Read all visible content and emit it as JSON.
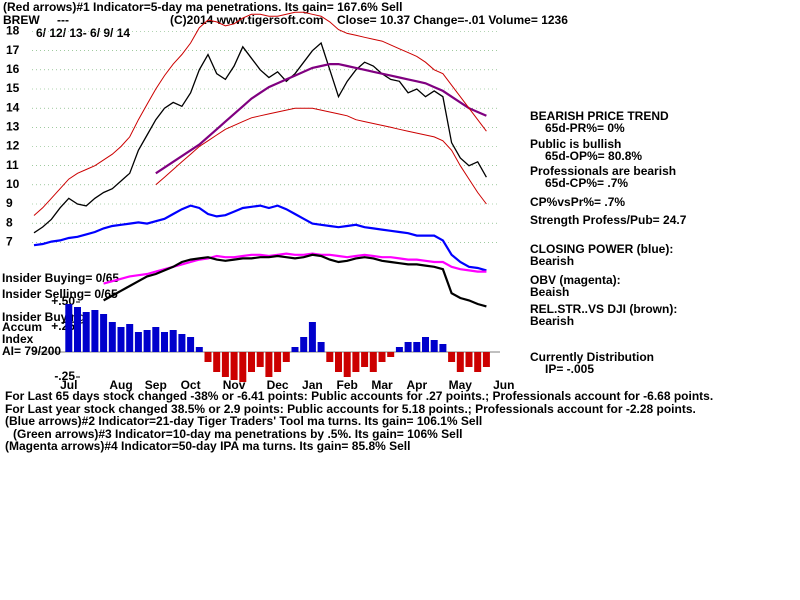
{
  "header": {
    "line1": "(Red arrows)#1 Indicator=5-day ma penetrations. Its gain= 167.6% Sell",
    "symbol": "BREW",
    "dashes": "---",
    "copyright": "(C)2014 www.tigersoft.com",
    "quote": "Close=  10.37  Change=-.01 Volume= 1236",
    "dates": "6/ 12/ 13- 6/ 9/ 14"
  },
  "notes": [
    "BEARISH PRICE TREND",
    "65d-PR%= 0%",
    "Public is bullish",
    "65d-OP%= 80.8%",
    "Professionals are bearish",
    "65d-CP%= .7%",
    "CP%vsPr%=  .7%",
    "Strength Profess/Pub= 24.7",
    "CLOSING POWER (blue):",
    "Bearish",
    "OBV (magenta):",
    "Beaish",
    "REL.STR..VS DJI (brown):",
    "Bearish",
    "Currently Distribution",
    "IP= -.005"
  ],
  "insider": [
    "Insider Buying= 0/65",
    "Insider Selling= 0/65",
    "Insider Buying",
    "Accum",
    "Index",
    "AI= 79/200"
  ],
  "footer": [
    "For Last 65 days stock changed -38% or -6.41 points:  Public accounts for  .27 points.;  Professionals account for -6.68 points.",
    "For Last year stock changed  38.5% or  2.9 points:  Public accounts for  5.18 points.;  Professionals account for -2.28 points.",
    "(Blue arrows)#2 Indicator=21-day Tiger Traders' Tool ma turns. Its gain= 106.1% Sell",
    "(Green arrows)#3 Indicator=10-day ma penetrations by .5%. Its gain= 106% Sell",
    "(Magenta arrows)#4 Indicator=50-day IPA ma turns. Its gain= 85.8% Sell"
  ],
  "chart_data": [
    {
      "type": "line",
      "categories": [
        null,
        null,
        null,
        null,
        "Jul",
        null,
        null,
        null,
        null,
        null,
        "Aug",
        null,
        null,
        null,
        "Sep",
        null,
        null,
        null,
        "Oct",
        null,
        null,
        null,
        null,
        "Nov",
        null,
        null,
        null,
        null,
        "Dec",
        null,
        null,
        null,
        "Jan",
        null,
        null,
        null,
        "Feb",
        null,
        null,
        null,
        "Mar",
        null,
        null,
        null,
        "Apr",
        null,
        null,
        null,
        null,
        "May",
        null,
        null,
        null,
        null,
        "Jun"
      ],
      "ylim": [
        6.6,
        18.6
      ],
      "yticks": [
        7,
        8,
        9,
        10,
        11,
        12,
        13,
        14,
        15,
        16,
        17,
        18
      ],
      "grid": true,
      "y2lim": [
        0,
        100
      ],
      "series": [
        {
          "name": "Close",
          "color": "#000000",
          "values": [
            7.5,
            7.8,
            8.2,
            8.8,
            9.3,
            9.0,
            8.9,
            9.3,
            9.6,
            9.8,
            10.2,
            10.6,
            11.8,
            12.6,
            13.4,
            14.0,
            14.3,
            14.1,
            14.8,
            16.0,
            16.8,
            15.8,
            15.5,
            16.2,
            17.2,
            16.6,
            16.0,
            15.6,
            15.9,
            15.4,
            15.8,
            16.4,
            17.0,
            17.4,
            16.0,
            14.6,
            15.4,
            16.0,
            16.4,
            16.2,
            15.8,
            15.5,
            15.4,
            14.8,
            15.0,
            14.6,
            14.9,
            14.6,
            12.2,
            11.4,
            11.0,
            11.2,
            10.4,
            null,
            null
          ]
        },
        {
          "name": "MA",
          "color": "#800080",
          "values": [
            null,
            null,
            null,
            null,
            null,
            null,
            null,
            null,
            null,
            null,
            null,
            null,
            null,
            null,
            10.6,
            10.9,
            11.2,
            11.5,
            11.8,
            12.1,
            12.5,
            12.9,
            13.3,
            13.7,
            14.1,
            14.5,
            14.8,
            15.1,
            15.3,
            15.5,
            15.7,
            15.9,
            16.1,
            16.2,
            16.3,
            16.3,
            16.2,
            16.1,
            16.0,
            15.9,
            15.8,
            15.7,
            15.6,
            15.5,
            15.4,
            15.3,
            15.1,
            14.9,
            14.6,
            14.3,
            14.0,
            13.8,
            13.6,
            null,
            null
          ]
        },
        {
          "name": "Upper band",
          "color": "#cc0000",
          "values": [
            8.4,
            8.8,
            9.3,
            9.8,
            10.3,
            10.6,
            10.8,
            11.0,
            11.3,
            11.6,
            12.0,
            12.5,
            13.4,
            14.2,
            15.0,
            15.7,
            16.3,
            16.8,
            17.4,
            18.2,
            18.6,
            18.5,
            18.3,
            18.4,
            18.7,
            18.9,
            18.9,
            18.8,
            18.8,
            18.9,
            19.0,
            19.0,
            18.9,
            18.8,
            18.5,
            18.1,
            17.9,
            17.8,
            17.7,
            17.6,
            17.5,
            17.3,
            17.1,
            16.9,
            16.7,
            16.4,
            16.0,
            15.8,
            15.2,
            14.6,
            14.0,
            13.4,
            12.8,
            null,
            null
          ]
        },
        {
          "name": "Lower band",
          "color": "#cc0000",
          "values": [
            null,
            null,
            null,
            null,
            null,
            null,
            null,
            null,
            null,
            null,
            null,
            null,
            null,
            null,
            10.0,
            10.4,
            10.8,
            11.2,
            11.6,
            12.0,
            12.3,
            12.6,
            12.9,
            13.1,
            13.3,
            13.5,
            13.6,
            13.7,
            13.8,
            13.9,
            14.0,
            14.0,
            14.0,
            13.9,
            13.8,
            13.7,
            13.6,
            13.4,
            13.3,
            13.2,
            13.1,
            13.0,
            12.9,
            12.8,
            12.7,
            12.6,
            12.5,
            12.3,
            11.8,
            11.0,
            10.3,
            9.6,
            9.0,
            null,
            null
          ]
        },
        {
          "name": "Closing Power",
          "color": "#0000ff",
          "axis": "y2",
          "values": [
            54,
            55,
            57,
            58,
            60,
            61,
            63,
            65,
            68,
            70,
            71,
            72,
            73,
            72,
            74,
            76,
            80,
            84,
            87,
            85,
            80,
            78,
            79,
            82,
            85,
            86,
            87,
            85,
            87,
            84,
            80,
            76,
            72,
            71,
            70,
            69,
            70,
            71,
            69,
            68,
            67,
            66,
            65,
            64,
            62,
            62,
            62,
            58,
            46,
            40,
            36,
            35,
            33,
            null,
            null
          ]
        },
        {
          "name": "OBV",
          "color": "#ff00ff",
          "axis": "y2",
          "values": [
            null,
            null,
            null,
            null,
            null,
            null,
            null,
            null,
            22,
            24,
            26,
            28,
            29,
            30,
            32,
            34,
            36,
            38,
            40,
            42,
            43,
            45,
            44,
            44,
            45,
            46,
            46,
            45,
            46,
            47,
            46,
            46,
            47,
            46,
            46,
            45,
            44,
            45,
            46,
            45,
            44,
            44,
            43,
            42,
            42,
            41,
            40,
            40,
            36,
            34,
            33,
            32,
            32,
            null,
            null
          ]
        },
        {
          "name": "Rel. Str.",
          "color": "#000000",
          "axis": "y2",
          "values": [
            null,
            null,
            null,
            null,
            null,
            null,
            null,
            null,
            8,
            12,
            16,
            20,
            24,
            28,
            30,
            33,
            36,
            40,
            42,
            43,
            44,
            42,
            41,
            42,
            43,
            43,
            44,
            44,
            45,
            44,
            43,
            44,
            46,
            45,
            42,
            40,
            41,
            43,
            44,
            43,
            41,
            40,
            39,
            38,
            38,
            37,
            36,
            34,
            14,
            10,
            8,
            5,
            3,
            null,
            null
          ]
        }
      ]
    },
    {
      "type": "bar",
      "ylim": [
        -0.35,
        0.55
      ],
      "yticks": [
        {
          "value": 0.5,
          "label": "+.50"
        },
        {
          "value": 0.25,
          "label": "+.25"
        },
        {
          "value": -0.25,
          "label": "-.25"
        }
      ],
      "positive_color": "#0000cc",
      "negative_color": "#cc0000",
      "values": [
        null,
        null,
        null,
        null,
        0.48,
        0.45,
        0.4,
        0.42,
        0.38,
        0.3,
        0.25,
        0.28,
        0.2,
        0.22,
        0.25,
        0.2,
        0.22,
        0.18,
        0.15,
        0.05,
        -0.1,
        -0.2,
        -0.25,
        -0.28,
        -0.3,
        -0.2,
        -0.15,
        -0.25,
        -0.2,
        -0.1,
        0.05,
        0.15,
        0.3,
        0.1,
        -0.1,
        -0.2,
        -0.25,
        -0.2,
        -0.15,
        -0.2,
        -0.1,
        -0.05,
        0.05,
        0.1,
        0.1,
        0.15,
        0.12,
        0.08,
        -0.1,
        -0.2,
        -0.15,
        -0.2,
        -0.15,
        null,
        null
      ]
    }
  ]
}
